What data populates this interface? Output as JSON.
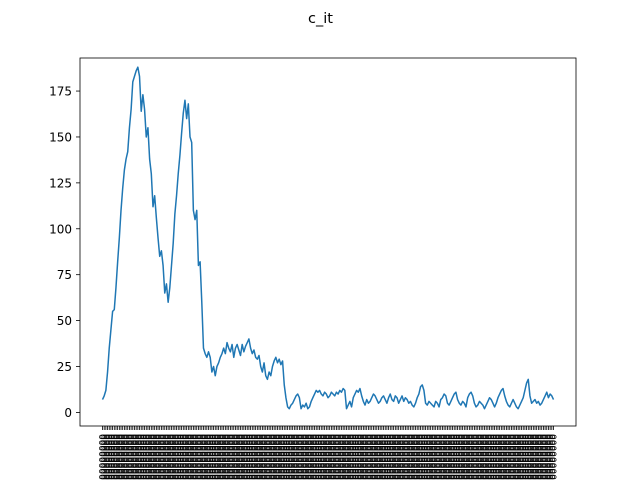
{
  "chart_data": {
    "type": "line",
    "title": "c_it",
    "xlabel": "",
    "ylabel": "",
    "ylim": [
      -7.4,
      193
    ],
    "yticks": [
      0,
      25,
      50,
      75,
      100,
      125,
      150,
      175
    ],
    "grid": false,
    "legend": "none",
    "x_tick_labels_note": "dense overlapping rotated date labels (illegible)",
    "series": [
      {
        "color": "#1f77b4",
        "values": [
          7,
          9,
          12,
          22,
          35,
          45,
          55,
          56,
          68,
          82,
          95,
          110,
          122,
          132,
          138,
          142,
          155,
          165,
          180,
          183,
          186,
          188,
          183,
          164,
          173,
          165,
          150,
          155,
          138,
          130,
          112,
          118,
          106,
          95,
          85,
          88,
          80,
          65,
          70,
          60,
          68,
          80,
          92,
          108,
          118,
          130,
          140,
          152,
          163,
          170,
          160,
          168,
          150,
          147,
          110,
          105,
          110,
          80,
          82,
          60,
          35,
          32,
          30,
          33,
          30,
          22,
          25,
          20,
          25,
          27,
          30,
          32,
          35,
          32,
          38,
          35,
          33,
          37,
          30,
          35,
          37,
          34,
          31,
          37,
          33,
          36,
          38,
          40,
          35,
          32,
          34,
          30,
          29,
          31,
          25,
          22,
          27,
          20,
          18,
          22,
          20,
          25,
          28,
          30,
          27,
          29,
          26,
          28,
          15,
          8,
          3,
          2,
          4,
          5,
          7,
          9,
          10,
          8,
          2,
          4,
          3,
          5,
          2,
          3,
          6,
          8,
          10,
          12,
          11,
          12,
          10,
          9,
          11,
          10,
          8,
          9,
          11,
          10,
          9,
          11,
          10,
          12,
          11,
          13,
          12,
          2,
          4,
          6,
          3,
          8,
          10,
          12,
          11,
          13,
          9,
          6,
          4,
          7,
          5,
          6,
          8,
          10,
          9,
          7,
          5,
          6,
          8,
          9,
          7,
          5,
          8,
          10,
          7,
          6,
          9,
          8,
          5,
          7,
          9,
          6,
          8,
          7,
          5,
          6,
          4,
          3,
          5,
          8,
          10,
          14,
          15,
          12,
          5,
          4,
          6,
          5,
          4,
          3,
          6,
          5,
          3,
          7,
          8,
          10,
          9,
          5,
          4,
          6,
          8,
          10,
          11,
          7,
          5,
          4,
          6,
          5,
          3,
          8,
          10,
          11,
          9,
          5,
          3,
          4,
          6,
          5,
          4,
          2,
          4,
          6,
          8,
          7,
          5,
          3,
          5,
          8,
          10,
          12,
          13,
          9,
          6,
          4,
          3,
          5,
          7,
          5,
          3,
          2,
          4,
          6,
          8,
          12,
          16,
          18,
          9,
          5,
          6,
          7,
          5,
          6,
          4,
          5,
          7,
          9,
          11,
          8,
          10,
          9,
          7
        ]
      }
    ]
  }
}
